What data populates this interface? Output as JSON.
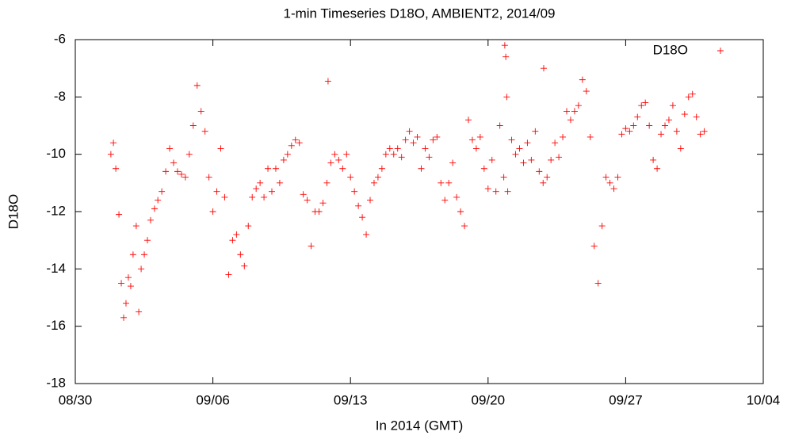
{
  "chart_data": {
    "type": "scatter",
    "title": "1-min Timeseries D18O, AMBIENT2, 2014/09",
    "xlabel": "In 2014 (GMT)",
    "ylabel": "D18O",
    "x": [
      243.81,
      243.94,
      244.06,
      244.22,
      244.34,
      244.46,
      244.58,
      244.7,
      244.82,
      244.94,
      245.1,
      245.23,
      245.35,
      245.51,
      245.67,
      245.83,
      246.03,
      246.2,
      246.4,
      246.6,
      246.8,
      247,
      247.2,
      247.4,
      247.6,
      247.8,
      248,
      248.2,
      248.4,
      248.6,
      248.8,
      249,
      249.2,
      249.4,
      249.6,
      249.8,
      250,
      250.2,
      250.4,
      250.6,
      250.8,
      251,
      251.2,
      251.4,
      251.6,
      251.8,
      252,
      252.2,
      252.4,
      252.6,
      252.8,
      253,
      253.2,
      253.4,
      253.6,
      253.8,
      254,
      254.2,
      254.4,
      254.6,
      254.8,
      255,
      255.2,
      255.4,
      255.6,
      255.8,
      256,
      256.2,
      256.4,
      256.6,
      256.8,
      257,
      257.2,
      257.4,
      257.6,
      257.8,
      258,
      258.2,
      258.4,
      258.6,
      258.8,
      259,
      259.2,
      259.4,
      259.6,
      259.8,
      260,
      260.2,
      260.4,
      260.6,
      260.8,
      261,
      261.2,
      261.4,
      261.6,
      261.8,
      262,
      262.2,
      262.4,
      262.6,
      262.8,
      263,
      263.2,
      263.4,
      263.6,
      263.8,
      264,
      264.2,
      264.4,
      264.6,
      264.8,
      265,
      265.2,
      265.4,
      265.6,
      265.8,
      266,
      266.2,
      266.4,
      266.6,
      266.8,
      267,
      267.2,
      267.4,
      267.6,
      267.8,
      268,
      268.2,
      268.4,
      268.6,
      268.8,
      269,
      269.2,
      269.4,
      269.6,
      269.8,
      270,
      270.2,
      270.4,
      270.6,
      270.8,
      271,
      271.2,
      271.4,
      271.6,
      271.8,
      272,
      272.2,
      272.4,
      272.6,
      272.8,
      273,
      273.2,
      273.4,
      273.6,
      273.8,
      274,
      254.86,
      263.85,
      263.9,
      263.95,
      265.83
    ],
    "series": [
      {
        "name": "D18O",
        "color": "#ff0000",
        "values": [
          -10.0,
          -9.6,
          -10.5,
          -12.1,
          -14.5,
          -15.7,
          -15.2,
          -14.3,
          -14.6,
          -13.5,
          -12.5,
          -15.5,
          -14.0,
          -13.5,
          -13.0,
          -12.3,
          -11.9,
          -11.6,
          -11.3,
          -10.6,
          -9.8,
          -10.3,
          -10.6,
          -10.7,
          -10.8,
          -10.0,
          -9.0,
          -7.6,
          -8.5,
          -9.2,
          -10.8,
          -12.0,
          -11.3,
          -9.8,
          -11.5,
          -14.2,
          -13.0,
          -12.8,
          -13.5,
          -13.9,
          -12.5,
          -11.5,
          -11.2,
          -11.0,
          -11.5,
          -10.5,
          -11.3,
          -10.5,
          -11.0,
          -10.2,
          -10.0,
          -9.7,
          -9.5,
          -9.6,
          -11.4,
          -11.6,
          -13.2,
          -12.0,
          -12.0,
          -11.7,
          -11.0,
          -10.3,
          -10.0,
          -10.2,
          -10.5,
          -10.0,
          -10.8,
          -11.3,
          -11.8,
          -12.2,
          -12.8,
          -11.6,
          -11.0,
          -10.8,
          -10.5,
          -10.0,
          -9.8,
          -10.0,
          -9.8,
          -10.1,
          -9.5,
          -9.2,
          -9.6,
          -9.4,
          -10.5,
          -9.8,
          -10.1,
          -9.5,
          -9.4,
          -11.0,
          -11.6,
          -11.0,
          -10.3,
          -11.5,
          -12.0,
          -12.5,
          -8.8,
          -9.5,
          -9.8,
          -9.4,
          -10.5,
          -11.2,
          -10.2,
          -11.3,
          -9.0,
          -10.8,
          -11.3,
          -9.5,
          -10.0,
          -9.8,
          -10.3,
          -9.6,
          -10.2,
          -9.2,
          -10.6,
          -11.0,
          -10.8,
          -10.2,
          -9.6,
          -10.1,
          -9.4,
          -8.5,
          -8.8,
          -8.5,
          -8.3,
          -7.4,
          -7.8,
          -9.4,
          -13.2,
          -14.5,
          -12.5,
          -10.8,
          -11.0,
          -11.2,
          -10.8,
          -9.3,
          -9.1,
          -9.2,
          -9.0,
          -8.7,
          -8.3,
          -8.2,
          -9.0,
          -10.2,
          -10.5,
          -9.3,
          -9.0,
          -8.8,
          -8.3,
          -9.2,
          -9.8,
          -8.6,
          -8.0,
          -7.9,
          -8.7,
          -9.3,
          -9.2,
          -7.45,
          -6.2,
          -6.6,
          -8.0,
          -7.0
        ]
      }
    ],
    "xlim": [
      242,
      277
    ],
    "xticks": [
      {
        "value": 242,
        "label": "08/30"
      },
      {
        "value": 249,
        "label": "09/06"
      },
      {
        "value": 256,
        "label": "09/13"
      },
      {
        "value": 263,
        "label": "09/20"
      },
      {
        "value": 270,
        "label": "09/27"
      },
      {
        "value": 277,
        "label": "10/04"
      }
    ],
    "ylim": [
      -18,
      -6
    ],
    "yticks": [
      -18,
      -16,
      -14,
      -12,
      -10,
      -8,
      -6
    ],
    "grid": false,
    "legend": "top-right"
  }
}
